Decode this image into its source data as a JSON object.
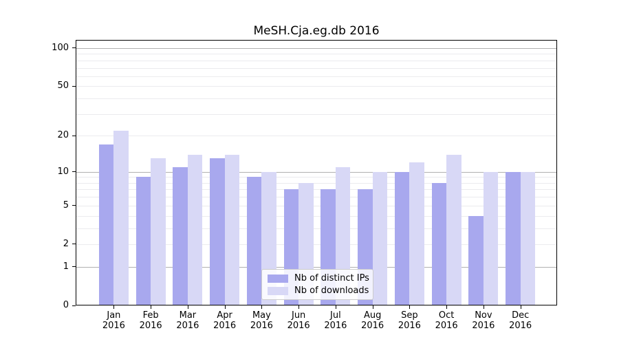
{
  "chart_data": {
    "type": "bar",
    "title": "MeSH.Cja.eg.db 2016",
    "x": [
      "Jan 2016",
      "Feb 2016",
      "Mar 2016",
      "Apr 2016",
      "May 2016",
      "Jun 2016",
      "Jul 2016",
      "Aug 2016",
      "Sep 2016",
      "Oct 2016",
      "Nov 2016",
      "Dec 2016"
    ],
    "series": [
      {
        "name": "Nb of distinct IPs",
        "color": "#a8a8ee",
        "values": [
          17,
          9,
          11,
          13,
          9,
          7,
          7,
          7,
          10,
          8,
          4,
          10
        ]
      },
      {
        "name": "Nb of downloads",
        "color": "#d8d8f6",
        "values": [
          22,
          13,
          14,
          14,
          10,
          8,
          11,
          10,
          12,
          14,
          10,
          10
        ]
      }
    ],
    "y_scale": "log1p",
    "ylim": [
      0,
      110
    ],
    "yticks": [
      0,
      1,
      2,
      5,
      10,
      20,
      50,
      100
    ],
    "grid": "horizontal",
    "legend_position": "bottom-center"
  },
  "y_axis": {
    "tick_labels": [
      "0",
      "1",
      "2",
      "5",
      "10",
      "20",
      "50",
      "100"
    ]
  },
  "legend": {
    "items": [
      "Nb of distinct IPs",
      "Nb of downloads"
    ]
  },
  "colors": {
    "ips_bar": "#a8a8ee",
    "downloads_bar": "#d8d8f6",
    "grid_major": "#b0b0b0",
    "grid_minor": "#ebebee",
    "axis": "#000000",
    "legend_border": "#cccccc"
  }
}
